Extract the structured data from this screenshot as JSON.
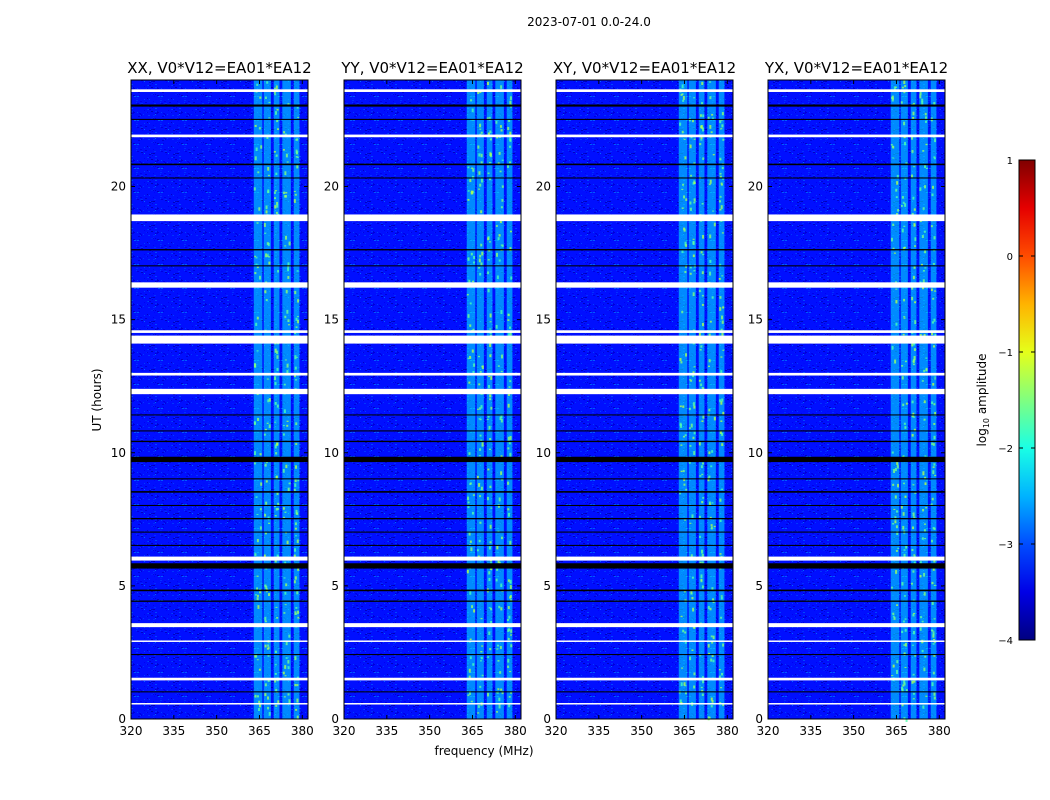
{
  "figure": {
    "suptitle": "2023-07-01 0.0-24.0",
    "xlabel": "frequency (MHz)",
    "ylabel": "UT (hours)"
  },
  "colorbar": {
    "label_main": "log",
    "label_sub": "10",
    "label_rest": " amplitude",
    "ticks": [
      {
        "value": 1,
        "label": "1"
      },
      {
        "value": 0,
        "label": "0"
      },
      {
        "value": -1,
        "label": "−1"
      },
      {
        "value": -2,
        "label": "−2"
      },
      {
        "value": -3,
        "label": "−3"
      },
      {
        "value": -4,
        "label": "−4"
      }
    ],
    "range": [
      -4,
      1
    ],
    "colormap": "jet"
  },
  "chart_data": {
    "type": "heatmap",
    "xlim": [
      320,
      382
    ],
    "ylim": [
      0,
      24
    ],
    "xticks": [
      320,
      335,
      350,
      365,
      380
    ],
    "yticks": [
      0,
      5,
      10,
      15,
      20
    ],
    "value_range": [
      -4,
      1
    ],
    "background_level": -3.3,
    "rfi_bands_mhz": [
      [
        363,
        366
      ],
      [
        366.5,
        369
      ],
      [
        370,
        372
      ],
      [
        373,
        376
      ],
      [
        377,
        379
      ]
    ],
    "blank_rows_hours": [
      [
        0.55,
        0.6
      ],
      [
        1.45,
        1.55
      ],
      [
        2.9,
        2.95
      ],
      [
        3.45,
        3.6
      ],
      [
        5.95,
        6.1
      ],
      [
        12.2,
        12.4
      ],
      [
        12.9,
        13.0
      ],
      [
        14.1,
        14.4
      ],
      [
        14.5,
        14.6
      ],
      [
        16.2,
        16.4
      ],
      [
        18.7,
        18.95
      ],
      [
        21.85,
        21.95
      ],
      [
        23.55,
        23.65
      ]
    ],
    "flagged_rows_hours": [
      [
        1.0,
        1.04
      ],
      [
        2.4,
        2.44
      ],
      [
        4.4,
        4.45
      ],
      [
        4.8,
        4.86
      ],
      [
        5.65,
        5.85
      ],
      [
        6.5,
        6.54
      ],
      [
        7.0,
        7.04
      ],
      [
        7.5,
        7.55
      ],
      [
        8.0,
        8.04
      ],
      [
        8.5,
        8.56
      ],
      [
        9.0,
        9.04
      ],
      [
        9.65,
        9.85
      ],
      [
        10.4,
        10.45
      ],
      [
        10.8,
        10.84
      ],
      [
        11.4,
        11.44
      ],
      [
        17.0,
        17.04
      ],
      [
        17.6,
        17.65
      ],
      [
        20.3,
        20.34
      ],
      [
        20.8,
        20.86
      ],
      [
        22.5,
        22.54
      ],
      [
        23.0,
        23.08
      ]
    ],
    "panels": [
      {
        "title": "XX, V0*V12=EA01*EA12"
      },
      {
        "title": "YY, V0*V12=EA01*EA12"
      },
      {
        "title": "XY, V0*V12=EA01*EA12"
      },
      {
        "title": "YX, V0*V12=EA01*EA12"
      }
    ]
  }
}
